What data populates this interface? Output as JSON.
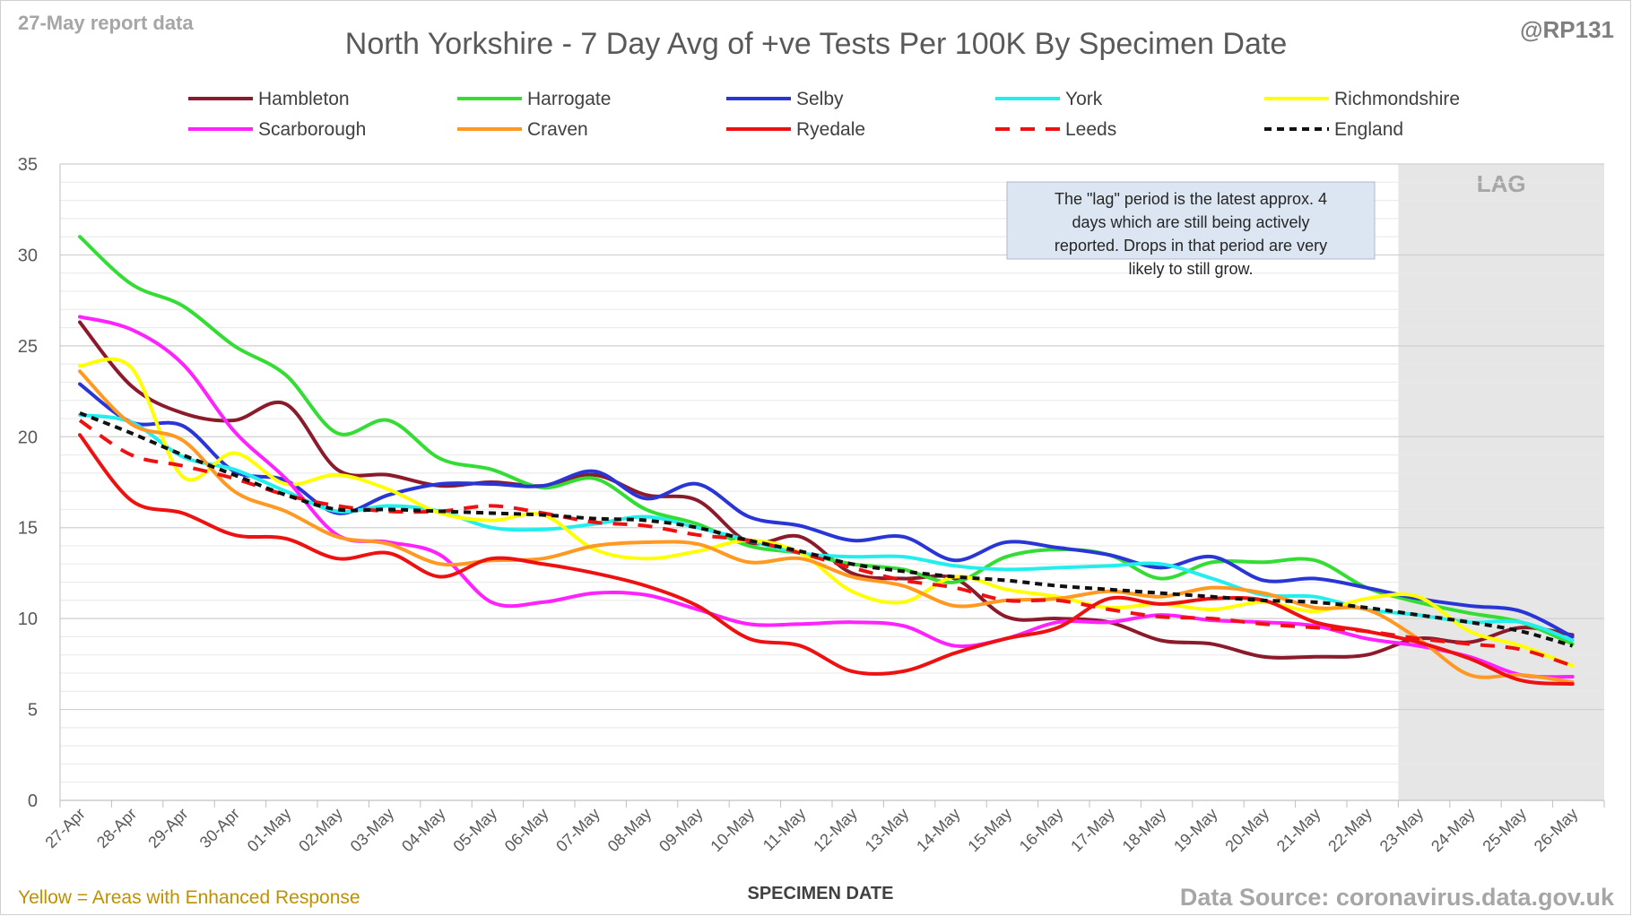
{
  "header": {
    "report_tag": "27-May report data",
    "handle": "@RP131"
  },
  "footer": {
    "enhanced_note": "Yellow = Areas with Enhanced Response",
    "source": "Data Source: coronavirus.data.gov.uk"
  },
  "colors": {
    "lag_shade": "#e6e6e6",
    "grid": "#d9d9d9",
    "note_bg": "#dce6f2",
    "enhanced_note": "#bf9000"
  },
  "chart_data": {
    "type": "line",
    "title": "North Yorkshire - 7 Day Avg of +ve Tests Per 100K By Specimen Date",
    "xlabel": "SPECIMEN DATE",
    "ylabel": "",
    "ylim": [
      0,
      35
    ],
    "yticks": [
      0,
      5,
      10,
      15,
      20,
      25,
      30,
      35
    ],
    "grid": true,
    "legend_position": "top",
    "categories": [
      "27-Apr",
      "28-Apr",
      "29-Apr",
      "30-Apr",
      "01-May",
      "02-May",
      "03-May",
      "04-May",
      "05-May",
      "06-May",
      "07-May",
      "08-May",
      "09-May",
      "10-May",
      "11-May",
      "12-May",
      "13-May",
      "14-May",
      "15-May",
      "16-May",
      "17-May",
      "18-May",
      "19-May",
      "20-May",
      "21-May",
      "22-May",
      "23-May",
      "24-May",
      "25-May",
      "26-May"
    ],
    "lag_region": {
      "from": "23-May",
      "to": "26-May",
      "label": "LAG"
    },
    "annotation": "The \"lag\" period is the latest approx. 4 days which are still being actively reported. Drops in that period are very likely to still grow.",
    "series": [
      {
        "name": "Hambleton",
        "color": "#8b1a2b",
        "dash": false,
        "values": [
          26.3,
          22.8,
          21.3,
          20.9,
          21.8,
          18.2,
          17.9,
          17.3,
          17.5,
          17.3,
          17.9,
          16.8,
          16.5,
          14.2,
          14.5,
          12.5,
          12.2,
          12.2,
          10.1,
          10.0,
          9.8,
          8.8,
          8.6,
          7.9,
          7.9,
          8.0,
          8.9,
          8.7,
          9.5,
          9.1
        ]
      },
      {
        "name": "Harrogate",
        "color": "#33dd33",
        "dash": false,
        "values": [
          31.0,
          28.4,
          27.2,
          25.0,
          23.4,
          20.2,
          20.9,
          18.8,
          18.2,
          17.2,
          17.7,
          16.0,
          15.2,
          14.0,
          13.6,
          13.0,
          12.7,
          12.0,
          13.4,
          13.8,
          13.5,
          12.2,
          13.1,
          13.1,
          13.2,
          11.7,
          10.9,
          10.3,
          9.8,
          8.6
        ]
      },
      {
        "name": "Selby",
        "color": "#2a35d6",
        "dash": false,
        "values": [
          22.9,
          20.8,
          20.6,
          18.1,
          17.6,
          15.8,
          16.8,
          17.4,
          17.4,
          17.3,
          18.1,
          16.6,
          17.4,
          15.6,
          15.1,
          14.3,
          14.5,
          13.2,
          14.2,
          13.9,
          13.5,
          12.8,
          13.4,
          12.1,
          12.2,
          11.7,
          11.1,
          10.7,
          10.4,
          9.0
        ]
      },
      {
        "name": "York",
        "color": "#22eeee",
        "dash": false,
        "values": [
          21.2,
          20.8,
          18.9,
          18.2,
          17.0,
          15.9,
          16.2,
          15.9,
          15.0,
          14.9,
          15.2,
          15.6,
          15.0,
          14.3,
          13.6,
          13.4,
          13.4,
          12.9,
          12.7,
          12.8,
          12.9,
          13.0,
          12.2,
          11.3,
          11.2,
          10.5,
          10.2,
          9.8,
          9.8,
          8.8
        ]
      },
      {
        "name": "Richmondshire",
        "color": "#ffff00",
        "dash": false,
        "values": [
          23.9,
          23.8,
          17.8,
          19.1,
          17.4,
          17.9,
          17.1,
          15.8,
          15.4,
          15.7,
          13.8,
          13.3,
          13.7,
          14.3,
          13.6,
          11.5,
          10.9,
          12.3,
          11.6,
          11.2,
          10.6,
          10.8,
          10.5,
          10.9,
          10.4,
          11.1,
          11.2,
          9.3,
          8.5,
          7.4
        ]
      },
      {
        "name": "Scarborough",
        "color": "#ff22ff",
        "dash": false,
        "values": [
          26.6,
          25.9,
          24.0,
          20.3,
          17.7,
          14.6,
          14.2,
          13.5,
          10.9,
          10.9,
          11.4,
          11.3,
          10.5,
          9.7,
          9.7,
          9.8,
          9.6,
          8.5,
          8.9,
          9.8,
          9.8,
          10.2,
          9.9,
          9.8,
          9.6,
          8.9,
          8.5,
          7.9,
          6.9,
          6.8
        ]
      },
      {
        "name": "Craven",
        "color": "#ff9922",
        "dash": false,
        "values": [
          23.6,
          20.7,
          19.8,
          17.0,
          15.9,
          14.5,
          14.1,
          13.0,
          13.2,
          13.3,
          14.0,
          14.2,
          14.1,
          13.1,
          13.3,
          12.3,
          11.8,
          10.7,
          11.0,
          11.1,
          11.5,
          11.2,
          11.7,
          11.4,
          10.6,
          10.5,
          8.9,
          6.9,
          6.9,
          6.5
        ]
      },
      {
        "name": "Ryedale",
        "color": "#ee1111",
        "dash": false,
        "values": [
          20.1,
          16.5,
          15.8,
          14.6,
          14.4,
          13.3,
          13.6,
          12.3,
          13.3,
          13.0,
          12.5,
          11.8,
          10.7,
          8.9,
          8.5,
          7.1,
          7.1,
          8.1,
          8.9,
          9.5,
          11.1,
          10.8,
          11.1,
          11.0,
          9.8,
          9.3,
          8.7,
          7.8,
          6.6,
          6.4
        ]
      },
      {
        "name": "Leeds",
        "color": "#ee1111",
        "dash": true,
        "values": [
          20.9,
          19.0,
          18.4,
          17.7,
          16.8,
          16.2,
          15.9,
          15.9,
          16.2,
          15.8,
          15.3,
          15.1,
          14.6,
          14.3,
          13.6,
          12.8,
          12.1,
          11.7,
          11.0,
          11.0,
          10.5,
          10.1,
          10.0,
          9.7,
          9.5,
          9.3,
          8.9,
          8.6,
          8.3,
          7.4
        ]
      },
      {
        "name": "England",
        "color": "#111111",
        "dash": true,
        "values": [
          21.3,
          20.2,
          19.0,
          17.9,
          16.8,
          16.0,
          16.0,
          15.9,
          15.8,
          15.7,
          15.5,
          15.4,
          15.0,
          14.3,
          13.7,
          13.0,
          12.6,
          12.3,
          12.1,
          11.8,
          11.6,
          11.4,
          11.2,
          11.0,
          10.9,
          10.6,
          10.2,
          9.8,
          9.3,
          8.5
        ]
      }
    ]
  }
}
